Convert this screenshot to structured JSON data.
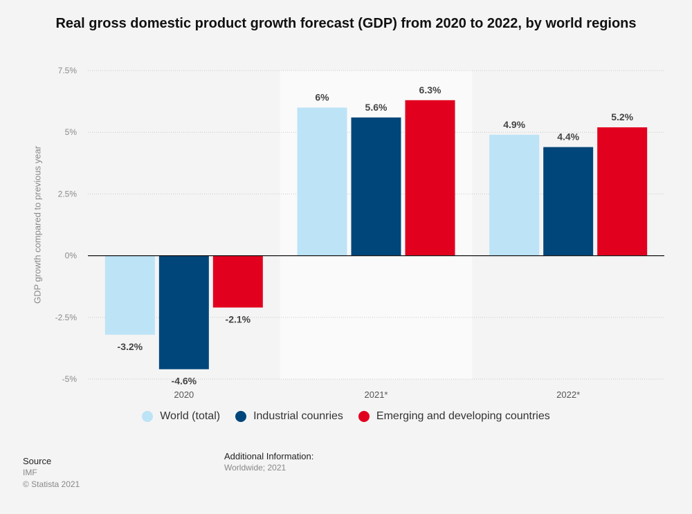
{
  "chart_data": {
    "type": "bar",
    "title": "Real gross domestic product growth forecast (GDP) from 2020 to 2022, by world regions",
    "xlabel": "",
    "ylabel": "GDP growth compared to previous year",
    "categories": [
      "2020",
      "2021*",
      "2022*"
    ],
    "series": [
      {
        "name": "World (total)",
        "color": "#bde3f6",
        "values": [
          -3.2,
          6,
          4.9
        ],
        "labels": [
          "-3.2%",
          "6%",
          "4.9%"
        ]
      },
      {
        "name": "Industrial counries",
        "color": "#00467a",
        "values": [
          -4.6,
          5.6,
          4.4
        ],
        "labels": [
          "-4.6%",
          "5.6%",
          "4.4%"
        ]
      },
      {
        "name": "Emerging and developing countries",
        "color": "#e2001f",
        "values": [
          -2.1,
          6.3,
          5.2
        ],
        "labels": [
          "-2.1%",
          "6.3%",
          "5.2%"
        ]
      }
    ],
    "ylim": [
      -5,
      7.5
    ],
    "yticks": [
      7.5,
      5,
      2.5,
      0,
      -2.5,
      -5
    ],
    "ytick_labels": [
      "7.5%",
      "5%",
      "2.5%",
      "0%",
      "-2.5%",
      "-5%"
    ],
    "grid": true,
    "legend_position": "bottom"
  },
  "footer": {
    "source_heading": "Source",
    "source_name": "IMF",
    "copyright": "© Statista 2021",
    "additional_heading": "Additional Information:",
    "additional_text": "Worldwide; 2021"
  }
}
